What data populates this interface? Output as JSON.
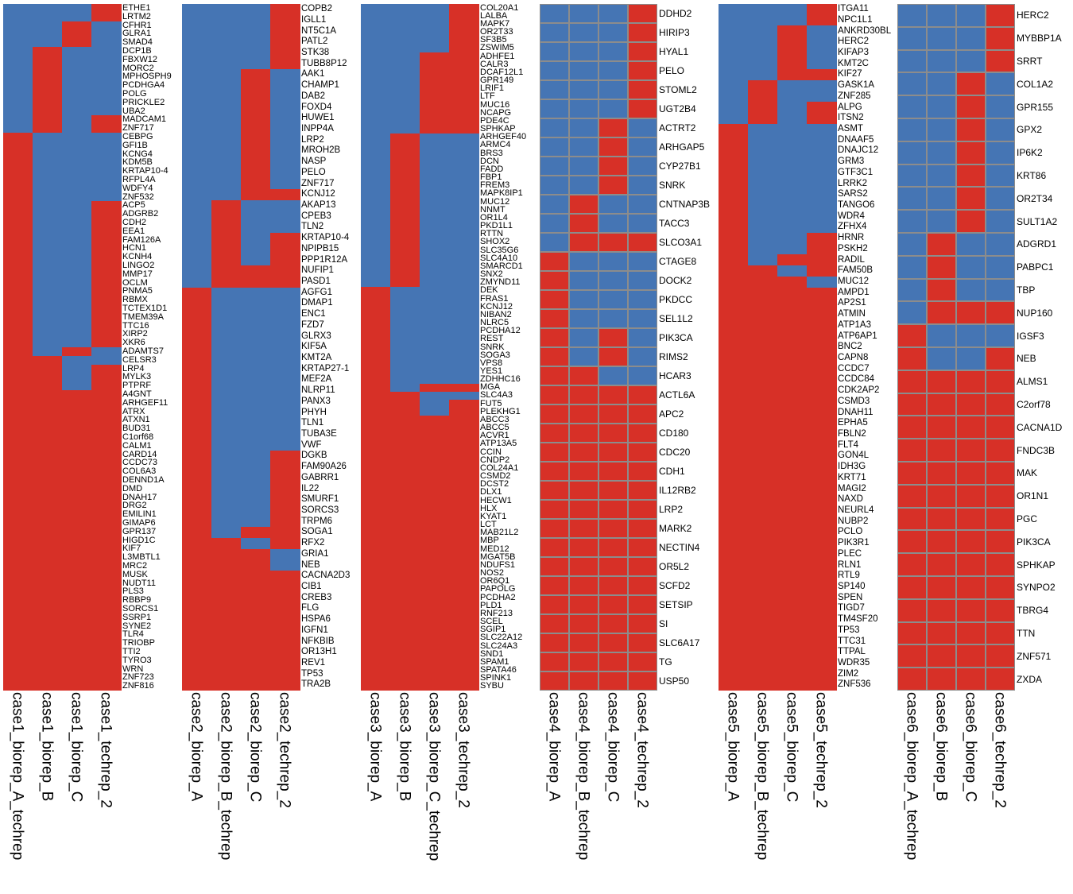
{
  "chart_data": [
    {
      "type": "heatmap",
      "title": "",
      "legend": "none",
      "colors": {
        "present": "#d73027",
        "absent": "#4575b4",
        "gridline": "#8c8c8c"
      },
      "columns": [
        "case1_biorep_A_techrep",
        "case1_biorep_B",
        "case1_biorep_C",
        "case1_techrep_2"
      ],
      "groups": [
        {
          "pattern": [
            0,
            0,
            0,
            1
          ],
          "genes": [
            "ETHE1",
            "LRTM2"
          ]
        },
        {
          "pattern": [
            0,
            0,
            1,
            0
          ],
          "genes": [
            "CFHR1",
            "GLRA1",
            "SMAD4"
          ]
        },
        {
          "pattern": [
            0,
            1,
            0,
            0
          ],
          "genes": [
            "DCP1B",
            "FBXW12",
            "MORC2",
            "MPHOSPH9",
            "PCDHGA4",
            "POLG",
            "PRICKLE2",
            "UBA2"
          ]
        },
        {
          "pattern": [
            0,
            1,
            0,
            1
          ],
          "genes": [
            "MADCAM1",
            "ZNF717"
          ]
        },
        {
          "pattern": [
            1,
            0,
            0,
            0
          ],
          "genes": [
            "CEBPG",
            "GFI1B",
            "KCNG4",
            "KDM5B",
            "KRTAP10-4",
            "RFPL4A",
            "WDFY4",
            "ZNF532"
          ]
        },
        {
          "pattern": [
            1,
            0,
            0,
            1
          ],
          "genes": [
            "ACP5",
            "ADGRB2",
            "CDH2",
            "EEA1",
            "FAM126A",
            "HCN1",
            "KCNH4",
            "LINGO2",
            "MMP17",
            "OCLM",
            "PNMA5",
            "RBMX",
            "TCTEX1D1",
            "TMEM39A",
            "TTC16",
            "XIRP2",
            "XKR6"
          ]
        },
        {
          "pattern": [
            1,
            0,
            1,
            0
          ],
          "genes": [
            "ADAMTS7"
          ]
        },
        {
          "pattern": [
            1,
            1,
            0,
            0
          ],
          "genes": [
            "CELSR3"
          ]
        },
        {
          "pattern": [
            1,
            1,
            0,
            1
          ],
          "genes": [
            "LRP4",
            "MYLK3",
            "PTPRF"
          ]
        },
        {
          "pattern": [
            1,
            1,
            1,
            1
          ],
          "genes": [
            "A4GNT",
            "ARHGEF11",
            "ATRX",
            "ATXN1",
            "BUD31",
            "C1orf68",
            "CALM1",
            "CARD14",
            "CCDC73",
            "COL6A3",
            "DENND1A",
            "DMD",
            "DNAH17",
            "DRG2",
            "EMILIN1",
            "GIMAP6",
            "GPR137",
            "HIGD1C",
            "KIF7",
            "L3MBTL1",
            "MRC2",
            "MUSK",
            "NUDT11",
            "PLS3",
            "RBBP9",
            "SORCS1",
            "SSRP1",
            "SYNE2",
            "TLR4",
            "TRIOBP",
            "TTI2",
            "TYRO3",
            "WRN",
            "ZNF723",
            "ZNF816"
          ]
        }
      ]
    },
    {
      "type": "heatmap",
      "title": "",
      "legend": "none",
      "colors": {
        "present": "#d73027",
        "absent": "#4575b4",
        "gridline": "#8c8c8c"
      },
      "columns": [
        "case2_biorep_A",
        "case2_biorep_B_techrep",
        "case2_biorep_C",
        "case2_techrep_2"
      ],
      "groups": [
        {
          "pattern": [
            0,
            0,
            0,
            1
          ],
          "genes": [
            "COPB2",
            "IGLL1",
            "NT5C1A",
            "PATL2",
            "STK38",
            "TUBB8P12"
          ]
        },
        {
          "pattern": [
            0,
            0,
            1,
            0
          ],
          "genes": [
            "AAK1",
            "CHAMP1",
            "DAB2",
            "FOXD4",
            "HUWE1",
            "INPP4A",
            "LRP2",
            "MROH2B",
            "NASP",
            "PELO",
            "ZNF717"
          ]
        },
        {
          "pattern": [
            0,
            0,
            1,
            1
          ],
          "genes": [
            "KCNJ12"
          ]
        },
        {
          "pattern": [
            0,
            1,
            0,
            0
          ],
          "genes": [
            "AKAP13",
            "CPEB3",
            "TLN2"
          ]
        },
        {
          "pattern": [
            0,
            1,
            0,
            1
          ],
          "genes": [
            "KRTAP10-4",
            "NPIPB15",
            "PPP1R12A"
          ]
        },
        {
          "pattern": [
            0,
            1,
            1,
            1
          ],
          "genes": [
            "NUFIP1",
            "PASD1"
          ]
        },
        {
          "pattern": [
            1,
            0,
            0,
            0
          ],
          "genes": [
            "AGFG1",
            "DMAP1",
            "ENC1",
            "FZD7",
            "GLRX3",
            "KIF5A",
            "KMT2A",
            "KRTAP27-1",
            "MEF2A",
            "NLRP11",
            "PANX3",
            "PHYH",
            "TLN1",
            "TUBA3E",
            "VWF"
          ]
        },
        {
          "pattern": [
            1,
            0,
            0,
            1
          ],
          "genes": [
            "DGKB",
            "FAM90A26",
            "GABRR1",
            "IL22",
            "SMURF1",
            "SORCS3",
            "TRPM6"
          ]
        },
        {
          "pattern": [
            1,
            0,
            1,
            1
          ],
          "genes": [
            "SOGA1"
          ]
        },
        {
          "pattern": [
            1,
            1,
            0,
            1
          ],
          "genes": [
            "RFX2"
          ]
        },
        {
          "pattern": [
            1,
            1,
            1,
            0
          ],
          "genes": [
            "GRIA1",
            "NEB"
          ]
        },
        {
          "pattern": [
            1,
            1,
            1,
            1
          ],
          "genes": [
            "CACNA2D3",
            "CIB1",
            "CREB3",
            "FLG",
            "HSPA6",
            "IGFN1",
            "NFKBIB",
            "OR13H1",
            "REV1",
            "TP53",
            "TRA2B"
          ]
        }
      ]
    },
    {
      "type": "heatmap",
      "title": "",
      "legend": "none",
      "colors": {
        "present": "#d73027",
        "absent": "#4575b4",
        "gridline": "#8c8c8c"
      },
      "columns": [
        "case3_biorep_A",
        "case3_biorep_B",
        "case3_biorep_C_techrep",
        "case3_techrep_2"
      ],
      "groups": [
        {
          "pattern": [
            0,
            0,
            0,
            1
          ],
          "genes": [
            "COL20A1",
            "LALBA",
            "MAPK7",
            "OR2T33",
            "SF3B5",
            "ZSWIM5"
          ]
        },
        {
          "pattern": [
            0,
            0,
            1,
            1
          ],
          "genes": [
            "ADHFE1",
            "CALR3",
            "DCAF12L1",
            "GPR149",
            "LRIF1",
            "LTF",
            "MUC16",
            "NCAPG",
            "PDE4C",
            "SPHKAP"
          ]
        },
        {
          "pattern": [
            0,
            1,
            0,
            0
          ],
          "genes": [
            "ARHGEF40",
            "ARMC4",
            "BRS3",
            "DCN",
            "FADD",
            "FBP1",
            "FREM3",
            "MAPK8IP1",
            "MUC12",
            "NNMT",
            "OR1L4",
            "PKD1L1",
            "RTTN",
            "SHOX2",
            "SLC35G6",
            "SLC4A10",
            "SMARCD1",
            "SNX2",
            "ZMYND11"
          ]
        },
        {
          "pattern": [
            1,
            0,
            0,
            0
          ],
          "genes": [
            "DEK",
            "FRAS1",
            "KCNJ12",
            "NIBAN2",
            "NLRC5",
            "PCDHA12",
            "REST",
            "SNRK",
            "SOGA3",
            "VPS8",
            "YES1",
            "ZDHHC16"
          ]
        },
        {
          "pattern": [
            1,
            0,
            1,
            1
          ],
          "genes": [
            "MGA"
          ]
        },
        {
          "pattern": [
            1,
            1,
            0,
            0
          ],
          "genes": [
            "SLC4A3"
          ]
        },
        {
          "pattern": [
            1,
            1,
            0,
            1
          ],
          "genes": [
            "FUT5",
            "PLEKHG1"
          ]
        },
        {
          "pattern": [
            1,
            1,
            1,
            1
          ],
          "genes": [
            "ABCC3",
            "ABCC5",
            "ACVR1",
            "ATP13A5",
            "CCIN",
            "CNDP2",
            "COL24A1",
            "CSMD2",
            "DCST2",
            "DLX1",
            "HECW1",
            "HLX",
            "KYAT1",
            "LCT",
            "MAB21L2",
            "MBP",
            "MED12",
            "MGAT5B",
            "NDUFS1",
            "NOS2",
            "OR6Q1",
            "PAPOLG",
            "PCDHA2",
            "PLD1",
            "RNF213",
            "SCEL",
            "SGIP1",
            "SLC22A12",
            "SLC24A3",
            "SND1",
            "SPAM1",
            "SPATA46",
            "SPINK1",
            "SYBU"
          ]
        }
      ]
    },
    {
      "type": "heatmap",
      "title": "",
      "legend": "none",
      "gridlines": true,
      "colors": {
        "present": "#d73027",
        "absent": "#4575b4",
        "gridline": "#8c8c8c"
      },
      "columns": [
        "case4_biorep_A",
        "case4_biorep_B_techrep",
        "case4_biorep_C",
        "case4_techrep_2"
      ],
      "groups": [
        {
          "pattern": [
            0,
            0,
            0,
            1
          ],
          "genes": [
            "DDHD2",
            "HIRIP3",
            "HYAL1",
            "PELO",
            "STOML2",
            "UGT2B4"
          ]
        },
        {
          "pattern": [
            0,
            0,
            1,
            0
          ],
          "genes": [
            "ACTRT2",
            "ARHGAP5",
            "CYP27B1",
            "SNRK"
          ]
        },
        {
          "pattern": [
            0,
            1,
            0,
            0
          ],
          "genes": [
            "CNTNAP3B",
            "TACC3"
          ]
        },
        {
          "pattern": [
            0,
            1,
            1,
            1
          ],
          "genes": [
            "SLCO3A1"
          ]
        },
        {
          "pattern": [
            1,
            0,
            0,
            0
          ],
          "genes": [
            "CTAGE8",
            "DOCK2",
            "PKDCC",
            "SEL1L2"
          ]
        },
        {
          "pattern": [
            1,
            0,
            1,
            0
          ],
          "genes": [
            "PIK3CA",
            "RIMS2"
          ]
        },
        {
          "pattern": [
            1,
            1,
            0,
            0
          ],
          "genes": [
            "HCAR3"
          ]
        },
        {
          "pattern": [
            1,
            1,
            1,
            1
          ],
          "genes": [
            "ACTL6A",
            "APC2",
            "CD180",
            "CDC20",
            "CDH1",
            "IL12RB2",
            "LRP2",
            "MARK2",
            "NECTIN4",
            "OR5L2",
            "SCFD2",
            "SETSIP",
            "SI",
            "SLC6A17",
            "TG",
            "USP50"
          ]
        }
      ]
    },
    {
      "type": "heatmap",
      "title": "",
      "legend": "none",
      "colors": {
        "present": "#d73027",
        "absent": "#4575b4",
        "gridline": "#8c8c8c"
      },
      "columns": [
        "case5_biorep_A",
        "case5_biorep_B_techrep",
        "case5_biorep_C",
        "case5_techrep_2"
      ],
      "groups": [
        {
          "pattern": [
            0,
            0,
            0,
            1
          ],
          "genes": [
            "ITGA11",
            "NPC1L1"
          ]
        },
        {
          "pattern": [
            0,
            0,
            1,
            0
          ],
          "genes": [
            "ANKRD30BL",
            "HERC2",
            "KIFAP3",
            "KMT2C"
          ]
        },
        {
          "pattern": [
            0,
            0,
            1,
            1
          ],
          "genes": [
            "KIF27"
          ]
        },
        {
          "pattern": [
            0,
            1,
            0,
            0
          ],
          "genes": [
            "GASK1A",
            "ZNF285"
          ]
        },
        {
          "pattern": [
            0,
            1,
            0,
            1
          ],
          "genes": [
            "ALPG",
            "ITSN2"
          ]
        },
        {
          "pattern": [
            1,
            0,
            0,
            0
          ],
          "genes": [
            "ASMT",
            "DNAAF5",
            "DNAJC12",
            "GRM3",
            "GTF3C1",
            "LRRK2",
            "SARS2",
            "TANGO6",
            "WDR4",
            "ZFHX4"
          ]
        },
        {
          "pattern": [
            1,
            0,
            0,
            1
          ],
          "genes": [
            "HRNR",
            "PSKH2"
          ]
        },
        {
          "pattern": [
            1,
            0,
            1,
            1
          ],
          "genes": [
            "RADIL"
          ]
        },
        {
          "pattern": [
            1,
            1,
            0,
            1
          ],
          "genes": [
            "FAM50B"
          ]
        },
        {
          "pattern": [
            1,
            1,
            1,
            0
          ],
          "genes": [
            "MUC12"
          ]
        },
        {
          "pattern": [
            1,
            1,
            1,
            1
          ],
          "genes": [
            "AMPD1",
            "AP2S1",
            "ATMIN",
            "ATP1A3",
            "ATP6AP1",
            "BNC2",
            "CAPN8",
            "CCDC7",
            "CCDC84",
            "CDK2AP2",
            "CSMD3",
            "DNAH11",
            "EPHA5",
            "FBLN2",
            "FLT4",
            "GON4L",
            "IDH3G",
            "KRT71",
            "MAGI2",
            "NAXD",
            "NEURL4",
            "NUBP2",
            "PCLO",
            "PIK3R1",
            "PLEC",
            "RLN1",
            "RTL9",
            "SP140",
            "SPEN",
            "TIGD7",
            "TM4SF20",
            "TP53",
            "TTC31",
            "TTPAL",
            "WDR35",
            "ZIM2",
            "ZNF536"
          ]
        }
      ]
    },
    {
      "type": "heatmap",
      "title": "",
      "legend": "none",
      "gridlines": true,
      "colors": {
        "present": "#d73027",
        "absent": "#4575b4",
        "gridline": "#8c8c8c"
      },
      "columns": [
        "case6_biorep_A_techrep",
        "case6_biorep_B",
        "case6_biorep_C",
        "case6_techrep_2"
      ],
      "groups": [
        {
          "pattern": [
            0,
            0,
            0,
            1
          ],
          "genes": [
            "HERC2",
            "MYBBP1A",
            "SRRT"
          ]
        },
        {
          "pattern": [
            0,
            0,
            1,
            0
          ],
          "genes": [
            "COL1A2",
            "GPR155",
            "GPX2",
            "IP6K2",
            "KRT86",
            "OR2T34",
            "SULT1A2"
          ]
        },
        {
          "pattern": [
            0,
            1,
            0,
            0
          ],
          "genes": [
            "ADGRD1",
            "PABPC1",
            "TBP"
          ]
        },
        {
          "pattern": [
            0,
            1,
            1,
            1
          ],
          "genes": [
            "NUP160"
          ]
        },
        {
          "pattern": [
            1,
            0,
            0,
            0
          ],
          "genes": [
            "IGSF3"
          ]
        },
        {
          "pattern": [
            1,
            0,
            0,
            1
          ],
          "genes": [
            "NEB"
          ]
        },
        {
          "pattern": [
            1,
            1,
            1,
            1
          ],
          "genes": [
            "ALMS1",
            "C2orf78",
            "CACNA1D",
            "FNDC3B",
            "MAK",
            "OR1N1",
            "PGC",
            "PIK3CA",
            "SPHKAP",
            "SYNPO2",
            "TBRG4",
            "TTN",
            "ZNF571",
            "ZXDA"
          ]
        }
      ]
    }
  ]
}
